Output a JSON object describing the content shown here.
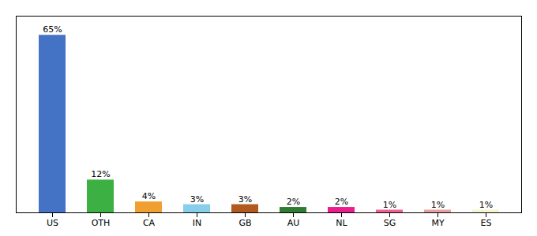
{
  "chart_data": {
    "type": "bar",
    "categories": [
      "US",
      "OTH",
      "CA",
      "IN",
      "GB",
      "AU",
      "NL",
      "SG",
      "MY",
      "ES"
    ],
    "values": [
      65,
      12,
      4,
      3,
      3,
      2,
      2,
      1,
      1,
      1
    ],
    "value_labels": [
      "65%",
      "12%",
      "4%",
      "3%",
      "3%",
      "2%",
      "2%",
      "1%",
      "1%",
      "1%"
    ],
    "data_labels": true,
    "colors": [
      "#4472c4",
      "#3cb043",
      "#f0a030",
      "#87ceeb",
      "#b05a20",
      "#2e7d32",
      "#e91e8c",
      "#f06090",
      "#e8a0a0",
      "#f5f5d0"
    ],
    "ylim": [
      0,
      72
    ],
    "tick_labels": "x",
    "grid": false
  }
}
